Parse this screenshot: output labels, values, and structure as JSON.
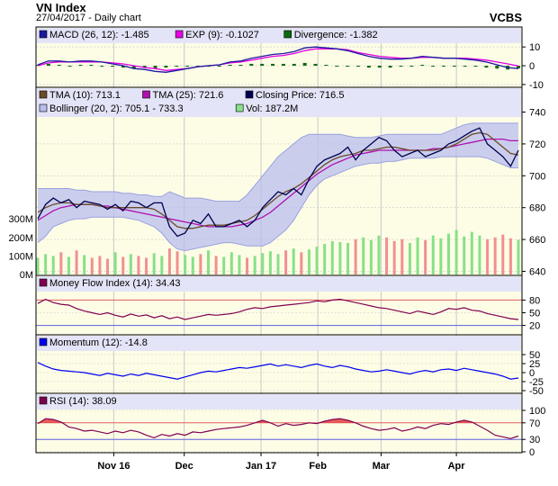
{
  "header": {
    "title": "VN Index",
    "subtitle": "27/04/2017 - Daily chart",
    "brand": "VCBS"
  },
  "colors": {
    "panel_bg": "#fdfde6",
    "band_bg": "#e4e4f8",
    "grid": "#c8c8c8",
    "macd": "#1a1aa0",
    "ema_signal": "#e400e4",
    "divergence": "#0d6a0d",
    "tma10": "#6b4a2a",
    "tma25": "#b010b0",
    "close": "#000050",
    "bollinger_fill": "#b8bdee",
    "bollinger_line": "#9aa0e0",
    "vol_up": "#88e088",
    "vol_down": "#f09090",
    "mfi": "#800050",
    "momentum": "#0000ee",
    "rsi": "#800050",
    "rsi_fill": "#e04040",
    "ref_red": "#e06060",
    "ref_blue": "#6060e0"
  },
  "chart_data": [
    {
      "type": "line",
      "panel": "macd",
      "legend": [
        {
          "swatch": "macd",
          "label": "MACD (26, 12): -1.485"
        },
        {
          "swatch": "ema_signal",
          "label": "EXP (9): -0.1027"
        },
        {
          "swatch": "divergence",
          "label": "Divergence: -1.382"
        }
      ],
      "yticks": [
        "10",
        "0",
        "-10"
      ],
      "ylim": [
        -11,
        12
      ],
      "series": [
        {
          "name": "MACD (26, 12)",
          "key": "macd",
          "values": [
            0.5,
            2.5,
            2.5,
            2.0,
            2.5,
            2.5,
            2.0,
            1.0,
            0.0,
            -1.5,
            -2.0,
            -3.0,
            -3.5,
            -2.5,
            -1.5,
            -0.5,
            0.0,
            0.5,
            2.0,
            2.5,
            4.0,
            5.0,
            6.0,
            6.5,
            7.5,
            9.5,
            10.0,
            9.5,
            9.0,
            8.0,
            6.5,
            5.0,
            4.0,
            3.5,
            3.5,
            4.0,
            5.0,
            4.5,
            4.0,
            4.0,
            3.5,
            3.0,
            2.0,
            0.5,
            -1.0,
            -1.5
          ]
        },
        {
          "name": "EXP (9)",
          "key": "ema_signal",
          "values": [
            0.0,
            1.5,
            2.0,
            2.0,
            2.0,
            2.0,
            2.0,
            1.5,
            1.0,
            0.0,
            -1.0,
            -1.5,
            -2.5,
            -2.0,
            -1.5,
            -0.5,
            0.0,
            0.5,
            1.5,
            2.0,
            3.0,
            4.0,
            5.0,
            5.5,
            6.5,
            8.0,
            9.0,
            9.0,
            9.0,
            8.5,
            7.0,
            6.0,
            5.0,
            4.5,
            4.0,
            4.0,
            4.5,
            4.5,
            4.0,
            4.0,
            4.0,
            3.5,
            3.0,
            2.0,
            1.0,
            -0.1
          ]
        },
        {
          "name": "Divergence",
          "key": "divergence",
          "values": [
            0.5,
            1.0,
            0.5,
            0.0,
            0.5,
            0.5,
            0.0,
            -0.5,
            -1.0,
            -1.5,
            -1.0,
            -1.5,
            -1.0,
            -0.5,
            0.0,
            0.0,
            0.0,
            0.0,
            0.5,
            0.5,
            1.0,
            1.0,
            1.0,
            1.0,
            1.0,
            1.5,
            1.0,
            0.5,
            0.0,
            -0.5,
            -0.5,
            -1.0,
            -1.0,
            -1.0,
            -0.5,
            0.0,
            0.5,
            0.0,
            0.0,
            0.0,
            -0.5,
            -0.5,
            -1.0,
            -1.5,
            -2.0,
            -1.4
          ]
        }
      ]
    },
    {
      "type": "line",
      "panel": "price",
      "legend": [
        {
          "swatch": "tma10",
          "label": "TMA (10): 713.1"
        },
        {
          "swatch": "tma25",
          "label": "TMA (25): 721.6"
        },
        {
          "swatch": "close",
          "label": "Closing Price: 716.5"
        },
        {
          "swatch": "bollinger_fill",
          "label": "Bollinger (20, 2): 705.1 - 733.3"
        },
        {
          "swatch": "vol_up",
          "label": "Vol: 187.2M"
        }
      ],
      "yticks": [
        "740",
        "720",
        "700",
        "680",
        "660",
        "640"
      ],
      "ylim": [
        638,
        742
      ],
      "volume_ticks": [
        "300M",
        "200M",
        "100M",
        "0M"
      ],
      "volume_max": 330,
      "series": [
        {
          "name": "Closing Price",
          "key": "close",
          "values": [
            673,
            682,
            686,
            683,
            685,
            680,
            684,
            683,
            682,
            679,
            682,
            678,
            684,
            683,
            680,
            683,
            683,
            668,
            662,
            664,
            672,
            670,
            676,
            668,
            668,
            670,
            672,
            668,
            672,
            680,
            685,
            690,
            688,
            692,
            688,
            698,
            706,
            710,
            712,
            714,
            718,
            710,
            716,
            720,
            724,
            722,
            716,
            712,
            714,
            716,
            712,
            714,
            716,
            720,
            722,
            725,
            728,
            730,
            720,
            716,
            712,
            706,
            716
          ]
        },
        {
          "name": "TMA (10)",
          "key": "tma10",
          "values": [
            677,
            680,
            682,
            683,
            683,
            682,
            682,
            682,
            681,
            680,
            680,
            680,
            680,
            680,
            680,
            679,
            676,
            672,
            668,
            667,
            667,
            668,
            669,
            669,
            669,
            670,
            671,
            672,
            675,
            679,
            683,
            687,
            690,
            692,
            695,
            699,
            703,
            707,
            710,
            712,
            713,
            714,
            716,
            716,
            717,
            718,
            718,
            717,
            716,
            716,
            716,
            716,
            717,
            718,
            720,
            723,
            726,
            727,
            726,
            722,
            718,
            714,
            713
          ]
        },
        {
          "name": "TMA (25)",
          "key": "tma25",
          "values": [
            672,
            675,
            678,
            680,
            681,
            682,
            682,
            682,
            681,
            681,
            680,
            679,
            678,
            677,
            676,
            675,
            674,
            673,
            672,
            671,
            670,
            669,
            668,
            668,
            668,
            668,
            669,
            670,
            672,
            674,
            677,
            681,
            685,
            689,
            693,
            697,
            701,
            704,
            707,
            709,
            711,
            713,
            714,
            715,
            716,
            716,
            716,
            716,
            716,
            716,
            716,
            717,
            717,
            718,
            719,
            720,
            721,
            722,
            723,
            723,
            723,
            722,
            722
          ]
        },
        {
          "name": "Bollinger upper",
          "key": "bollinger_upper",
          "values": [
            692,
            692,
            692,
            692,
            692,
            691,
            691,
            690,
            690,
            690,
            690,
            689,
            689,
            688,
            688,
            687,
            687,
            690,
            688,
            686,
            686,
            686,
            685,
            684,
            684,
            684,
            684,
            688,
            694,
            700,
            706,
            712,
            716,
            720,
            724,
            726,
            726,
            726,
            726,
            726,
            725,
            724,
            724,
            724,
            725,
            726,
            726,
            726,
            726,
            726,
            726,
            726,
            726,
            728,
            730,
            732,
            733,
            733,
            733,
            733,
            733,
            733,
            733
          ]
        },
        {
          "name": "Bollinger lower",
          "key": "bollinger_lower",
          "values": [
            658,
            662,
            668,
            670,
            672,
            673,
            673,
            674,
            674,
            674,
            674,
            674,
            673,
            672,
            670,
            668,
            664,
            658,
            654,
            653,
            654,
            655,
            656,
            657,
            658,
            658,
            657,
            656,
            656,
            656,
            658,
            662,
            666,
            672,
            680,
            688,
            694,
            698,
            700,
            702,
            704,
            706,
            707,
            708,
            708,
            709,
            709,
            710,
            711,
            711,
            711,
            711,
            712,
            712,
            712,
            712,
            712,
            712,
            711,
            709,
            707,
            705,
            705
          ]
        },
        {
          "name": "Vol",
          "key": "volume",
          "unit": "M",
          "values": [
            90,
            110,
            100,
            120,
            95,
            130,
            105,
            90,
            100,
            85,
            120,
            95,
            110,
            100,
            90,
            115,
            100,
            140,
            125,
            105,
            95,
            110,
            130,
            100,
            95,
            120,
            105,
            90,
            100,
            115,
            125,
            110,
            130,
            140,
            120,
            135,
            150,
            165,
            180,
            175,
            170,
            190,
            200,
            185,
            210,
            200,
            180,
            190,
            170,
            200,
            185,
            210,
            195,
            220,
            240,
            205,
            230,
            210,
            190,
            200,
            215,
            195,
            187
          ]
        }
      ]
    },
    {
      "type": "line",
      "panel": "mfi",
      "legend": [
        {
          "swatch": "mfi",
          "label": "Money Flow Index (14): 34.43"
        }
      ],
      "yticks": [
        "80",
        "50",
        "20"
      ],
      "ylim": [
        0,
        100
      ],
      "ref_lines": [
        80,
        20
      ],
      "series": [
        {
          "name": "Money Flow Index (14)",
          "key": "mfi",
          "values": [
            72,
            82,
            74,
            70,
            68,
            60,
            54,
            50,
            46,
            50,
            44,
            40,
            47,
            42,
            45,
            38,
            43,
            36,
            40,
            34,
            38,
            42,
            46,
            44,
            46,
            48,
            52,
            58,
            62,
            60,
            64,
            66,
            68,
            70,
            72,
            74,
            78,
            76,
            80,
            82,
            78,
            74,
            70,
            66,
            62,
            60,
            56,
            52,
            48,
            54,
            50,
            46,
            52,
            60,
            58,
            62,
            56,
            54,
            48,
            44,
            40,
            36,
            34
          ]
        }
      ]
    },
    {
      "type": "line",
      "panel": "momentum",
      "legend": [
        {
          "swatch": "momentum",
          "label": "Momentum (12): -14.8"
        }
      ],
      "yticks": [
        "50",
        "25",
        "0",
        "-25",
        "-50"
      ],
      "ylim": [
        -55,
        60
      ],
      "series": [
        {
          "name": "Momentum (12)",
          "key": "momentum",
          "values": [
            28,
            18,
            10,
            6,
            4,
            2,
            0,
            -4,
            -8,
            -2,
            -6,
            -10,
            -4,
            -8,
            -2,
            -6,
            -10,
            -14,
            -18,
            -12,
            -6,
            0,
            4,
            2,
            6,
            10,
            14,
            12,
            16,
            20,
            24,
            18,
            22,
            18,
            14,
            20,
            24,
            18,
            14,
            20,
            16,
            10,
            6,
            2,
            4,
            8,
            4,
            0,
            -4,
            2,
            6,
            2,
            8,
            10,
            6,
            12,
            8,
            4,
            0,
            -4,
            -10,
            -18,
            -15
          ]
        }
      ]
    },
    {
      "type": "line",
      "panel": "rsi",
      "legend": [
        {
          "swatch": "rsi",
          "label": "RSI (14): 38.09"
        }
      ],
      "yticks": [
        "100",
        "70",
        "30",
        "0"
      ],
      "ylim": [
        0,
        100
      ],
      "ref_lines": [
        70,
        30
      ],
      "series": [
        {
          "name": "RSI (14)",
          "key": "rsi",
          "values": [
            68,
            80,
            78,
            72,
            60,
            56,
            50,
            52,
            48,
            44,
            50,
            46,
            52,
            48,
            40,
            34,
            42,
            38,
            44,
            40,
            48,
            46,
            50,
            54,
            56,
            58,
            60,
            64,
            70,
            76,
            70,
            62,
            68,
            64,
            66,
            70,
            68,
            74,
            78,
            80,
            76,
            70,
            62,
            56,
            52,
            54,
            58,
            50,
            54,
            60,
            56,
            64,
            68,
            66,
            72,
            76,
            72,
            62,
            52,
            40,
            36,
            32,
            38
          ]
        }
      ]
    }
  ],
  "xaxis": {
    "labels": [
      {
        "label": "Nov 16",
        "pos": 0.16
      },
      {
        "label": "Dec",
        "pos": 0.305
      },
      {
        "label": "Jan 17",
        "pos": 0.463
      },
      {
        "label": "Feb",
        "pos": 0.58
      },
      {
        "label": "Mar",
        "pos": 0.71
      },
      {
        "label": "Apr",
        "pos": 0.865
      }
    ]
  }
}
